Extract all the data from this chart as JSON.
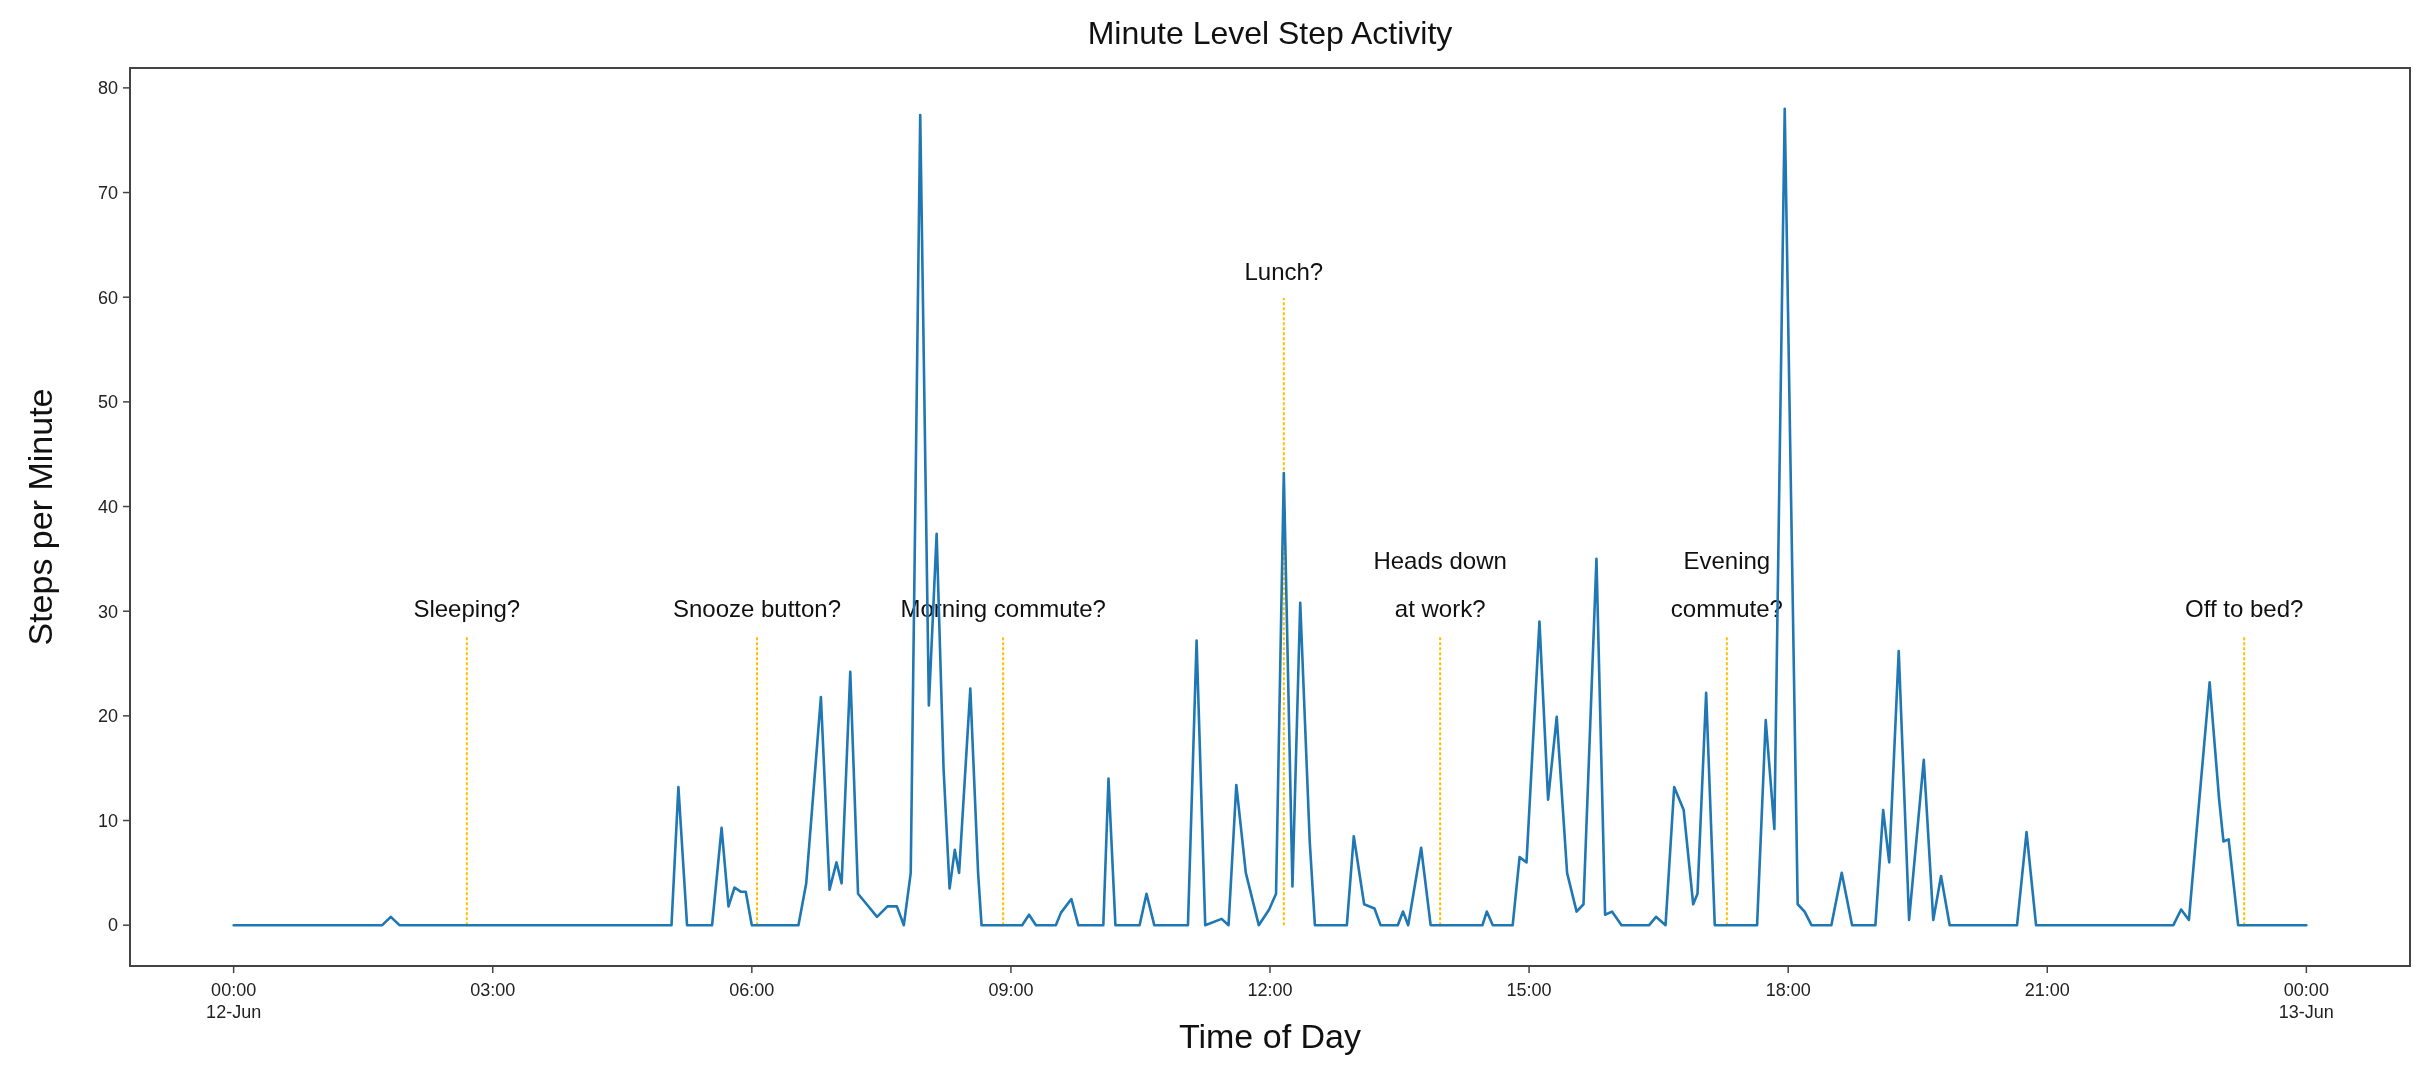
{
  "chart_data": {
    "type": "line",
    "title": "Minute Level Step Activity",
    "xlabel": "Time of Day",
    "ylabel": "Steps per Minute",
    "xlim": [
      -1.2,
      25.2
    ],
    "ylim": [
      -3.9,
      81.9
    ],
    "xticks": [
      {
        "value": 0,
        "label": "00:00\n12-Jun"
      },
      {
        "value": 3,
        "label": "03:00"
      },
      {
        "value": 6,
        "label": "06:00"
      },
      {
        "value": 9,
        "label": "09:00"
      },
      {
        "value": 12,
        "label": "12:00"
      },
      {
        "value": 15,
        "label": "15:00"
      },
      {
        "value": 18,
        "label": "18:00"
      },
      {
        "value": 21,
        "label": "21:00"
      },
      {
        "value": 24,
        "label": "00:00\n13-Jun"
      }
    ],
    "yticks": [
      0,
      10,
      20,
      30,
      40,
      50,
      60,
      70,
      80
    ],
    "grid": false,
    "marker": "none",
    "line_style": "solid",
    "series": [
      {
        "color": "#1f77b4",
        "x": [
          0,
          1.72,
          1.82,
          1.92,
          5.07,
          5.15,
          5.25,
          5.54,
          5.65,
          5.73,
          5.8,
          5.87,
          5.93,
          6.0,
          6.54,
          6.63,
          6.8,
          6.9,
          6.98,
          7.04,
          7.14,
          7.23,
          7.33,
          7.45,
          7.57,
          7.68,
          7.76,
          7.84,
          7.95,
          8.05,
          8.14,
          8.22,
          8.29,
          8.35,
          8.4,
          8.53,
          8.62,
          8.66,
          9.13,
          9.21,
          9.29,
          9.52,
          9.58,
          9.7,
          9.78,
          10.07,
          10.13,
          10.21,
          10.49,
          10.57,
          10.66,
          11.05,
          11.15,
          11.25,
          11.44,
          11.52,
          11.61,
          11.72,
          11.87,
          11.99,
          12.07,
          12.16,
          12.26,
          12.35,
          12.46,
          12.52,
          12.89,
          12.97,
          13.09,
          13.21,
          13.28,
          13.48,
          13.54,
          13.6,
          13.75,
          13.86,
          14.46,
          14.51,
          14.58,
          14.81,
          14.89,
          14.97,
          15.12,
          15.22,
          15.32,
          15.44,
          15.55,
          15.63,
          15.78,
          15.88,
          15.96,
          16.07,
          16.39,
          16.47,
          16.58,
          16.68,
          16.79,
          16.9,
          16.95,
          17.05,
          17.15,
          17.64,
          17.74,
          17.84,
          17.96,
          18.11,
          18.19,
          18.27,
          18.5,
          18.62,
          18.74,
          19.01,
          19.1,
          19.17,
          19.28,
          19.4,
          19.57,
          19.68,
          19.77,
          19.87,
          20.65,
          20.76,
          20.87,
          22.46,
          22.55,
          22.64,
          22.75,
          22.88,
          22.99,
          23.04,
          23.1,
          23.21,
          24.0
        ],
        "values": [
          0,
          0,
          0.8,
          0,
          0,
          13.2,
          0,
          0,
          9.3,
          1.8,
          3.6,
          3.2,
          3.2,
          0,
          0,
          4,
          21.8,
          3.4,
          6,
          4,
          24.2,
          3,
          2,
          0.8,
          1.8,
          1.8,
          0,
          5,
          77.4,
          21,
          37.4,
          15,
          3.5,
          7.2,
          5,
          22.6,
          5,
          0,
          0,
          1,
          0,
          0,
          1.2,
          2.5,
          0,
          0,
          14,
          0,
          0,
          3,
          0,
          0,
          27.2,
          0,
          0.6,
          0,
          13.4,
          5,
          0,
          1.5,
          3,
          43.2,
          3.7,
          30.8,
          8,
          0,
          0,
          8.5,
          2,
          1.6,
          0,
          0,
          1.3,
          0,
          7.4,
          0,
          0,
          1.3,
          0,
          0,
          6.5,
          6,
          29,
          12,
          19.9,
          5,
          1.3,
          2,
          35,
          1,
          1.3,
          0,
          0,
          0.8,
          0,
          13.2,
          11,
          2,
          3,
          22.2,
          0,
          0,
          19.6,
          9.2,
          78,
          2,
          1.3,
          0,
          0,
          5,
          0,
          0,
          11,
          6,
          26.2,
          0.5,
          15.8,
          0.5,
          4.7,
          0,
          0,
          8.9,
          0,
          0,
          1.5,
          0.5,
          11,
          23.2,
          12,
          8,
          8.2,
          0,
          0
        ]
      }
    ],
    "ref_lines": [
      {
        "axis": "x",
        "value": 2.7,
        "label": "Sleeping?",
        "color": "#ffc000",
        "line_style": "dotted"
      },
      {
        "axis": "x",
        "value": 6.06,
        "label": "Snooze button?",
        "color": "#ffc000",
        "line_style": "dotted"
      },
      {
        "axis": "x",
        "value": 8.91,
        "label": "Morning commute?",
        "color": "#ffc000",
        "line_style": "dotted"
      },
      {
        "axis": "x",
        "value": 12.16,
        "label": "Lunch?",
        "color": "#ffc000",
        "line_style": "dotted"
      },
      {
        "axis": "x",
        "value": 13.97,
        "label": "Heads down\nat work?",
        "color": "#ffc000",
        "line_style": "dotted"
      },
      {
        "axis": "x",
        "value": 17.29,
        "label": "Evening\ncommute?",
        "color": "#ffc000",
        "line_style": "dotted"
      },
      {
        "axis": "x",
        "value": 23.28,
        "label": "Off to bed?",
        "color": "#ffc000",
        "line_style": "dotted"
      }
    ]
  }
}
